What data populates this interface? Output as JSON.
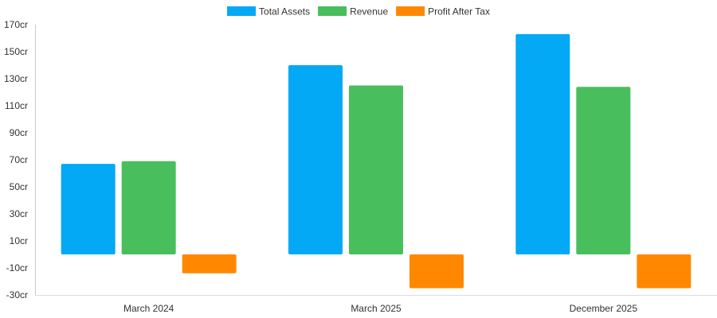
{
  "chart_data": {
    "type": "bar",
    "categories": [
      "March 2024",
      "March 2025",
      "December 2025"
    ],
    "series": [
      {
        "name": "Total Assets",
        "values": [
          67,
          140,
          163
        ],
        "color": "#03A9F4"
      },
      {
        "name": "Revenue",
        "values": [
          69,
          125,
          124
        ],
        "color": "#48BE5C"
      },
      {
        "name": "Profit After Tax",
        "values": [
          -14,
          -25,
          -25
        ],
        "color": "#FF8800"
      }
    ],
    "ylim": [
      -30,
      170
    ],
    "yticks": [
      -30,
      -10,
      10,
      30,
      50,
      70,
      90,
      110,
      130,
      150,
      170
    ],
    "y_tick_suffix": "cr",
    "title": "",
    "xlabel": "",
    "ylabel": "",
    "grid": false,
    "legend_position": "top-center"
  }
}
